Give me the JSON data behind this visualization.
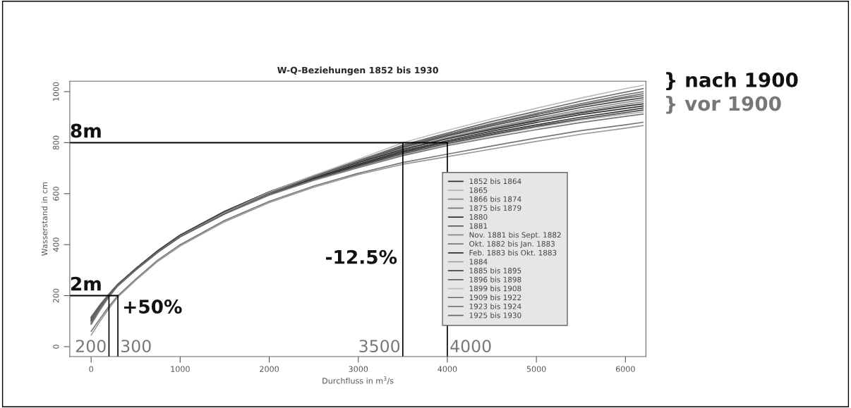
{
  "chart_data": {
    "type": "line",
    "title": "W-Q-Beziehungen 1852 bis 1930",
    "xlabel": "Durchfluss in m$^{3}$/s",
    "ylabel": "Wasserstand in cm",
    "x": [
      0,
      100,
      200,
      300,
      500,
      750,
      1000,
      1500,
      2000,
      2500,
      3000,
      3500,
      4000,
      4500,
      5000,
      5500,
      6000,
      6200
    ],
    "xlim": [
      -240,
      6230
    ],
    "xticks": [
      0,
      1000,
      2000,
      3000,
      4000,
      5000,
      6000
    ],
    "ylim": [
      -39,
      1041
    ],
    "yticks": [
      0,
      200,
      400,
      600,
      800,
      1000
    ],
    "grid": false,
    "legend": "bottom right",
    "line_style": "solid",
    "marker": "none",
    "series": [
      {
        "name": "1852 bis 1864",
        "color": "#333333",
        "values": [
          94,
          150,
          198,
          241,
          303,
          374,
          435,
          525,
          600,
          660,
          712,
          762,
          803,
          838,
          870,
          900,
          925,
          936
        ]
      },
      {
        "name": "1865",
        "color": "#aaaaaa",
        "values": [
          96,
          152,
          200,
          243,
          305,
          375,
          433,
          522,
          597,
          655,
          705,
          753,
          793,
          828,
          860,
          889,
          912,
          920
        ]
      },
      {
        "name": "1866 bis 1874",
        "color": "#888888",
        "values": [
          112,
          162,
          205,
          245,
          305,
          375,
          435,
          527,
          604,
          667,
          721,
          773,
          817,
          855,
          890,
          922,
          950,
          960
        ]
      },
      {
        "name": "1875 bis 1879",
        "color": "#777777",
        "values": [
          60,
          110,
          158,
          200,
          265,
          340,
          400,
          495,
          570,
          630,
          680,
          722,
          755,
          787,
          818,
          847,
          870,
          880
        ]
      },
      {
        "name": "1880",
        "color": "#333333",
        "values": [
          116,
          164,
          206,
          245,
          305,
          375,
          435,
          526,
          602,
          663,
          716,
          767,
          808,
          845,
          879,
          910,
          934,
          944
        ]
      },
      {
        "name": "1881",
        "color": "#444444",
        "values": [
          110,
          161,
          204,
          244,
          304,
          374,
          433,
          523,
          598,
          657,
          708,
          757,
          797,
          832,
          864,
          893,
          918,
          928
        ]
      },
      {
        "name": "Nov. 1881 bis Sept. 1882",
        "color": "#888888",
        "values": [
          92,
          148,
          197,
          240,
          302,
          372,
          433,
          526,
          604,
          668,
          723,
          776,
          820,
          859,
          895,
          929,
          958,
          968
        ]
      },
      {
        "name": "Okt. 1882 bis Jan. 1883",
        "color": "#777777",
        "values": [
          114,
          163,
          206,
          245,
          304,
          373,
          431,
          520,
          594,
          652,
          702,
          749,
          788,
          821,
          851,
          879,
          903,
          912
        ]
      },
      {
        "name": "Feb. 1883 bis Okt. 1883",
        "color": "#333333",
        "values": [
          100,
          154,
          201,
          243,
          306,
          377,
          438,
          531,
          607,
          669,
          722,
          773,
          815,
          852,
          886,
          917,
          943,
          952
        ]
      },
      {
        "name": "1884",
        "color": "#999999",
        "values": [
          45,
          100,
          150,
          195,
          260,
          335,
          395,
          490,
          565,
          625,
          675,
          715,
          745,
          775,
          805,
          833,
          857,
          867
        ]
      },
      {
        "name": "1885 bis 1895",
        "color": "#444444",
        "values": [
          106,
          158,
          202,
          243,
          305,
          376,
          437,
          530,
          607,
          671,
          727,
          781,
          826,
          866,
          903,
          938,
          966,
          976
        ]
      },
      {
        "name": "1896 bis 1898",
        "color": "#666666",
        "values": [
          90,
          147,
          197,
          240,
          302,
          372,
          433,
          525,
          604,
          670,
          730,
          787,
          832,
          873,
          910,
          945,
          975,
          984
        ]
      },
      {
        "name": "1899 bis 1908",
        "color": "#bbbbbb",
        "values": [
          86,
          143,
          195,
          238,
          300,
          371,
          432,
          524,
          605,
          672,
          735,
          800,
          848,
          893,
          935,
          975,
          1012,
          1025
        ]
      },
      {
        "name": "1909 bis 1922",
        "color": "#666666",
        "values": [
          102,
          153,
          200,
          241,
          301,
          371,
          431,
          521,
          601,
          666,
          728,
          791,
          838,
          883,
          923,
          963,
          998,
          1012
        ]
      },
      {
        "name": "1923 bis 1924",
        "color": "#777777",
        "values": [
          88,
          145,
          196,
          238,
          300,
          370,
          431,
          521,
          601,
          666,
          727,
          787,
          833,
          875,
          915,
          953,
          988,
          1000
        ]
      },
      {
        "name": "1925 bis 1930",
        "color": "#666666",
        "values": [
          104,
          155,
          201,
          242,
          302,
          371,
          431,
          522,
          602,
          667,
          727,
          785,
          830,
          871,
          910,
          947,
          980,
          992
        ]
      }
    ],
    "ref_lines": [
      {
        "axis": "y",
        "value": 800,
        "label": "8m",
        "color": "#000000"
      },
      {
        "axis": "y",
        "value": 200,
        "label": "2m",
        "color": "#000000"
      },
      {
        "axis": "x",
        "value": 200,
        "label": "200",
        "color": "#000000"
      },
      {
        "axis": "x",
        "value": 300,
        "label": "300",
        "color": "#000000"
      },
      {
        "axis": "x",
        "value": 3500,
        "label": "3500",
        "color": "#000000"
      },
      {
        "axis": "x",
        "value": 4000,
        "label": "4000",
        "color": "#000000"
      }
    ],
    "annotations": [
      "} nach 1900",
      "} vor 1900",
      "+50%",
      "-12.5%"
    ]
  }
}
